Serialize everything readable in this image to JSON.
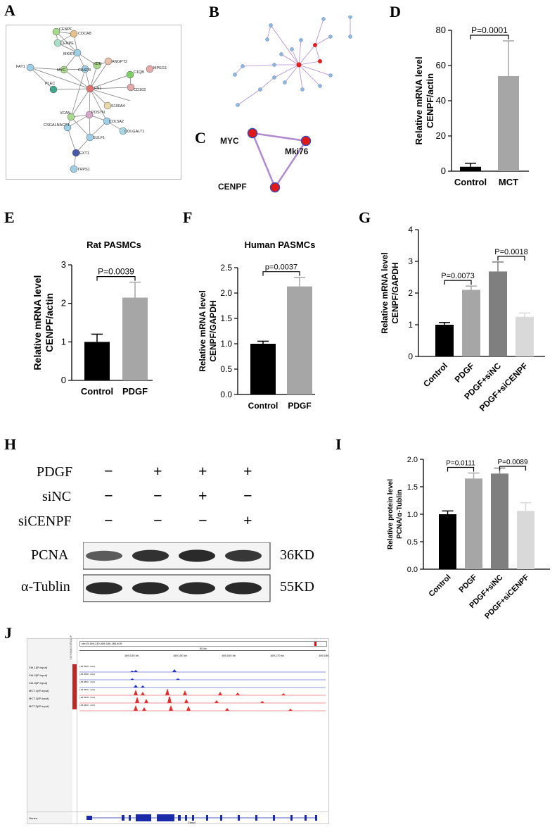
{
  "panels": {
    "A": "A",
    "B": "B",
    "C": "C",
    "D": "D",
    "E": "E",
    "F": "F",
    "G": "G",
    "H": "H",
    "I": "I",
    "J": "J"
  },
  "network_a": {
    "nodes": [
      "CENPF",
      "CDCA8",
      "CENPE",
      "MKI67",
      "KDR",
      "ANGPT2",
      "MPEG1",
      "FAT1",
      "MYC",
      "CASP3",
      "C1QB",
      "PLEC",
      "FN1",
      "CD163",
      "S100A4",
      "VCAN",
      "POSTN",
      "COL5A2",
      "CSGALNACT1",
      "SULF1",
      "COLGALT1",
      "EXT1",
      "TRPS1"
    ]
  },
  "network_c": {
    "nodes": [
      "MYC",
      "Mki76",
      "CENPF"
    ]
  },
  "chart_data": [
    {
      "panel": "D",
      "type": "bar",
      "categories": [
        "Control",
        "MCT"
      ],
      "values": [
        2.5,
        54
      ],
      "errors": [
        2,
        20
      ],
      "ylabel": "Relative mRNA level CENPF/actin",
      "ylabel_lines": [
        "Relative mRNA level",
        "CENPF/actin"
      ],
      "ylim": [
        0,
        80
      ],
      "yticks": [
        "0",
        "20",
        "40",
        "60",
        "80"
      ],
      "colors": [
        "#000000",
        "#a6a6a6"
      ],
      "significance": [
        {
          "from": 0,
          "to": 1,
          "label": "P=0.0001"
        }
      ]
    },
    {
      "panel": "E",
      "type": "bar",
      "title": "Rat PASMCs",
      "categories": [
        "Control",
        "PDGF"
      ],
      "values": [
        1.0,
        2.15
      ],
      "errors": [
        0.2,
        0.4
      ],
      "ylabel": "Relative mRNA level CENPF/actin",
      "ylabel_lines": [
        "Relative  mRNA  level",
        "CENPF/actin"
      ],
      "ylim": [
        0,
        3
      ],
      "yticks": [
        "0",
        "1",
        "2",
        "3"
      ],
      "colors": [
        "#000000",
        "#a6a6a6"
      ],
      "significance": [
        {
          "from": 0,
          "to": 1,
          "label": "P=0.0039"
        }
      ]
    },
    {
      "panel": "F",
      "type": "bar",
      "title": "Human PASMCs",
      "categories": [
        "Control",
        "PDGF"
      ],
      "values": [
        1.0,
        2.13
      ],
      "errors": [
        0.05,
        0.18
      ],
      "ylabel": "Relative mRNA level CENPF/GAPDH",
      "ylabel_lines": [
        "Relative mRNA level",
        "CENPF/GAPDH"
      ],
      "ylim": [
        0,
        2.5
      ],
      "yticks": [
        "0.0",
        "0.5",
        "1.0",
        "1.5",
        "2.0",
        "2.5"
      ],
      "colors": [
        "#000000",
        "#a6a6a6"
      ],
      "significance": [
        {
          "from": 0,
          "to": 1,
          "label": "p=0.0037"
        }
      ]
    },
    {
      "panel": "G",
      "type": "bar",
      "categories": [
        "Control",
        "PDGF",
        "PDGF+siNC",
        "PDGF+siCENPF"
      ],
      "values": [
        1.0,
        2.1,
        2.68,
        1.25
      ],
      "errors": [
        0.07,
        0.12,
        0.3,
        0.12
      ],
      "ylabel": "Relative mRNA level CENPF/GAPDH",
      "ylabel_lines": [
        "Relative mRNA level",
        "CENPF/GAPDH"
      ],
      "ylim": [
        0,
        4
      ],
      "yticks": [
        "0",
        "1",
        "2",
        "3",
        "4"
      ],
      "colors": [
        "#000000",
        "#a6a6a6",
        "#7f7f7f",
        "#d9d9d9"
      ],
      "significance": [
        {
          "from": 0,
          "to": 1,
          "label": "P=0.0073"
        },
        {
          "from": 2,
          "to": 3,
          "label": "P=0.0018"
        }
      ]
    },
    {
      "panel": "I",
      "type": "bar",
      "categories": [
        "Control",
        "PDGF",
        "PDGF+siNC",
        "PDGF+siCENPF"
      ],
      "values": [
        1.0,
        1.65,
        1.74,
        1.06
      ],
      "errors": [
        0.06,
        0.1,
        0.1,
        0.15
      ],
      "ylabel": "Relative protein level PCNA/α-Tublin",
      "ylabel_lines": [
        "Relative protein level",
        "PCNA/α-Tublin"
      ],
      "ylim": [
        0,
        2.0
      ],
      "yticks": [
        "0.0",
        "0.5",
        "1.0",
        "1.5",
        "2.0"
      ],
      "colors": [
        "#000000",
        "#a6a6a6",
        "#7f7f7f",
        "#d9d9d9"
      ],
      "significance": [
        {
          "from": 0,
          "to": 1,
          "label": "P=0.0111"
        },
        {
          "from": 2,
          "to": 3,
          "label": "P=0.0089"
        }
      ]
    }
  ],
  "western_blot": {
    "treatments": [
      {
        "label": "PDGF",
        "signs": [
          "−",
          "+",
          "+",
          "+"
        ]
      },
      {
        "label": "siNC",
        "signs": [
          "−",
          "−",
          "+",
          "−"
        ]
      },
      {
        "label": "siCENPF",
        "signs": [
          "−",
          "−",
          "−",
          "+"
        ]
      }
    ],
    "bands": [
      {
        "label": "PCNA",
        "size": "36KD",
        "intensity": [
          0.55,
          0.85,
          0.9,
          0.8
        ]
      },
      {
        "label": "α-Tublin",
        "size": "55KD",
        "intensity": [
          0.9,
          0.9,
          0.9,
          0.9
        ]
      }
    ]
  },
  "genome_browser": {
    "locus": "chr13:169,130,409-169,180,409",
    "scale": "50 kb",
    "ticks": [
      "169,140 kb",
      "169,150 kb",
      "169,160 kb",
      "169,170 kb",
      "169,180"
    ],
    "tracks": [
      {
        "name": "Ctrl-1(IP-input)",
        "range": "[-35.4520 - 24.3]",
        "color": "#1f2fbf"
      },
      {
        "name": "Ctrl-2(IP-input)",
        "range": "[-35.4520 - 24.3]",
        "color": "#1f2fbf"
      },
      {
        "name": "Ctrl-3(IP-input)",
        "range": "[-35.4520 - 24.3]",
        "color": "#1f2fbf"
      },
      {
        "name": "MCT-1(IP-input)",
        "range": "[-35.4520 - 24.3]",
        "color": "#e03030"
      },
      {
        "name": "MCT-2(IP-input)",
        "range": "[-35.4520 - 24.3]",
        "color": "#e03030"
      },
      {
        "name": "MCT-3(IP-input)",
        "range": "[-35.4520 - 24.3]",
        "color": "#e03030"
      }
    ],
    "gene_label": "Genes",
    "gene_name": "Cenpf",
    "side_label": "Y2/Y3/MCT/RNA-IP"
  }
}
